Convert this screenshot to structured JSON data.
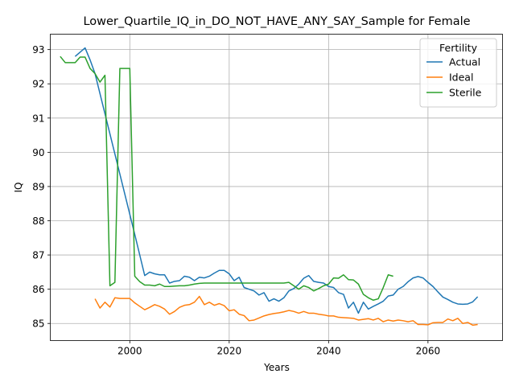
{
  "chart_data": {
    "type": "line",
    "title": "Lower_Quartile_IQ_in_DO_NOT_HAVE_ANY_SAY_Sample for Female",
    "xlabel": "Years",
    "ylabel": "IQ",
    "xlim": [
      1984,
      2075
    ],
    "ylim": [
      84.5,
      93.45
    ],
    "xticks": [
      2000,
      2020,
      2040,
      2060
    ],
    "yticks": [
      85,
      86,
      87,
      88,
      89,
      90,
      91,
      92,
      93
    ],
    "grid": true,
    "legend": {
      "title": "Fertility",
      "placement": "top-right"
    },
    "series": [
      {
        "name": "Actual",
        "color": "#1f77b4",
        "x": [
          1989,
          1991,
          1992,
          1993,
          2001,
          2003,
          2004,
          2005,
          2006,
          2007,
          2008,
          2009,
          2010,
          2011,
          2012,
          2013,
          2014,
          2015,
          2016,
          2017,
          2018,
          2019,
          2020,
          2021,
          2022,
          2023,
          2024,
          2025,
          2026,
          2027,
          2028,
          2029,
          2030,
          2031,
          2032,
          2033,
          2034,
          2035,
          2036,
          2037,
          2038,
          2039,
          2040,
          2041,
          2042,
          2043,
          2044,
          2045,
          2046,
          2047,
          2048,
          2049,
          2050,
          2051,
          2052,
          2053,
          2054,
          2055,
          2056,
          2057,
          2058,
          2059,
          2060,
          2061,
          2062,
          2063,
          2064,
          2065,
          2066,
          2067,
          2068,
          2069,
          2070
        ],
        "values": [
          92.8,
          93.05,
          92.7,
          92.3,
          87.6,
          86.4,
          86.5,
          86.45,
          86.42,
          86.42,
          86.18,
          86.23,
          86.25,
          86.38,
          86.35,
          86.25,
          86.35,
          86.33,
          86.38,
          86.47,
          86.55,
          86.55,
          86.45,
          86.25,
          86.35,
          86.05,
          86.0,
          85.95,
          85.83,
          85.9,
          85.65,
          85.72,
          85.65,
          85.75,
          85.95,
          86.02,
          86.15,
          86.32,
          86.4,
          86.23,
          86.2,
          86.18,
          86.08,
          86.05,
          85.9,
          85.85,
          85.45,
          85.62,
          85.3,
          85.62,
          85.42,
          85.5,
          85.57,
          85.65,
          85.8,
          85.83,
          86.0,
          86.08,
          86.22,
          86.33,
          86.37,
          86.33,
          86.2,
          86.08,
          85.92,
          85.77,
          85.7,
          85.62,
          85.57,
          85.56,
          85.57,
          85.63,
          85.78
        ]
      },
      {
        "name": "Ideal",
        "color": "#ff7f0e",
        "x": [
          1993,
          1994,
          1995,
          1996,
          1997,
          1998,
          1999,
          2000,
          2001,
          2002,
          2003,
          2004,
          2005,
          2006,
          2007,
          2008,
          2009,
          2010,
          2011,
          2012,
          2013,
          2014,
          2015,
          2016,
          2017,
          2018,
          2019,
          2020,
          2021,
          2022,
          2023,
          2024,
          2025,
          2026,
          2027,
          2028,
          2029,
          2030,
          2031,
          2032,
          2033,
          2034,
          2035,
          2036,
          2037,
          2038,
          2039,
          2040,
          2041,
          2042,
          2043,
          2044,
          2045,
          2046,
          2047,
          2048,
          2049,
          2050,
          2051,
          2052,
          2053,
          2054,
          2055,
          2056,
          2057,
          2058,
          2059,
          2060,
          2061,
          2062,
          2063,
          2064,
          2065,
          2066,
          2067,
          2068,
          2069,
          2070
        ],
        "values": [
          85.72,
          85.45,
          85.62,
          85.48,
          85.75,
          85.73,
          85.73,
          85.73,
          85.6,
          85.5,
          85.4,
          85.47,
          85.55,
          85.5,
          85.42,
          85.27,
          85.35,
          85.47,
          85.53,
          85.55,
          85.62,
          85.79,
          85.55,
          85.62,
          85.53,
          85.58,
          85.52,
          85.37,
          85.4,
          85.27,
          85.23,
          85.08,
          85.1,
          85.16,
          85.22,
          85.26,
          85.29,
          85.31,
          85.34,
          85.38,
          85.35,
          85.3,
          85.35,
          85.3,
          85.3,
          85.27,
          85.25,
          85.22,
          85.22,
          85.18,
          85.17,
          85.16,
          85.15,
          85.1,
          85.12,
          85.14,
          85.1,
          85.15,
          85.05,
          85.1,
          85.07,
          85.1,
          85.08,
          85.05,
          85.08,
          84.97,
          84.97,
          84.96,
          85.02,
          85.03,
          85.03,
          85.13,
          85.08,
          85.15,
          85.0,
          85.03,
          84.95,
          84.97
        ]
      },
      {
        "name": "Sterile",
        "color": "#2ca02c",
        "x": [
          1986,
          1987,
          1988,
          1989,
          1990,
          1991,
          1992,
          1993,
          1994,
          1995,
          1996,
          1997,
          1998,
          1999,
          2000,
          2001,
          2002,
          2003,
          2004,
          2005,
          2006,
          2007,
          2008,
          2009,
          2010,
          2011,
          2012,
          2013,
          2014,
          2015,
          2016,
          2017,
          2018,
          2019,
          2020,
          2021,
          2022,
          2023,
          2024,
          2025,
          2026,
          2027,
          2028,
          2029,
          2030,
          2031,
          2032,
          2033,
          2034,
          2035,
          2036,
          2037,
          2038,
          2039,
          2040,
          2041,
          2042,
          2043,
          2044,
          2045,
          2046,
          2047,
          2048,
          2049,
          2050,
          2051,
          2052,
          2053
        ],
        "values": [
          92.8,
          92.62,
          92.62,
          92.62,
          92.78,
          92.78,
          92.45,
          92.3,
          92.05,
          92.25,
          86.1,
          86.2,
          92.45,
          92.45,
          92.45,
          86.38,
          86.22,
          86.12,
          86.12,
          86.1,
          86.15,
          86.08,
          86.08,
          86.09,
          86.1,
          86.1,
          86.12,
          86.15,
          86.17,
          86.18,
          86.18,
          86.18,
          86.18,
          86.18,
          86.18,
          86.18,
          86.18,
          86.18,
          86.18,
          86.18,
          86.18,
          86.18,
          86.18,
          86.18,
          86.18,
          86.18,
          86.2,
          86.1,
          86.0,
          86.1,
          86.05,
          85.95,
          86.02,
          86.1,
          86.15,
          86.33,
          86.32,
          86.42,
          86.28,
          86.27,
          86.15,
          85.85,
          85.75,
          85.68,
          85.72,
          86.05,
          86.42,
          86.38
        ]
      }
    ]
  }
}
